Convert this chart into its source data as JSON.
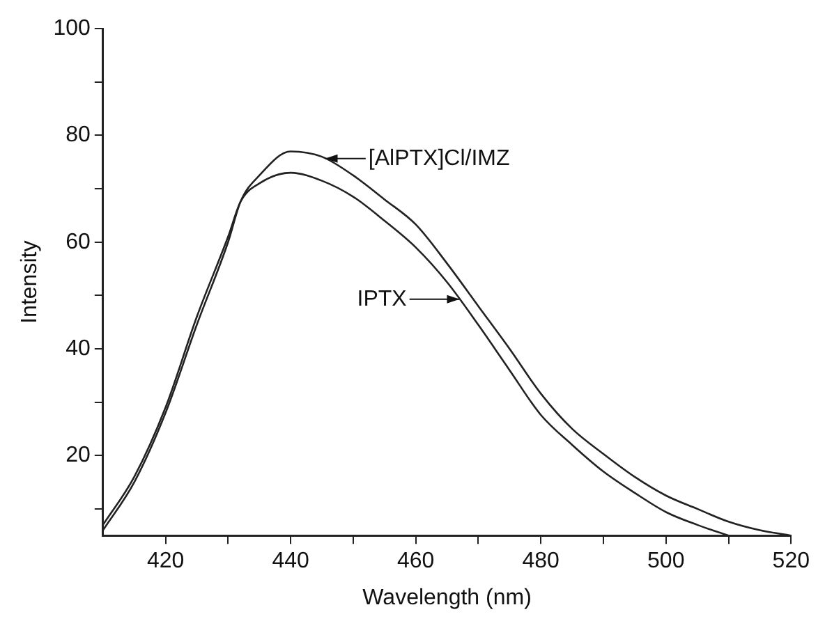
{
  "chart_data": {
    "type": "line",
    "xlabel": "Wavelength (nm)",
    "ylabel": "Intensity",
    "xlim": [
      410,
      520
    ],
    "ylim": [
      5,
      100
    ],
    "xticks": [
      420,
      {
        "value": 430,
        "label": null
      },
      440,
      {
        "value": 450,
        "label": null
      },
      460,
      {
        "value": 470,
        "label": null
      },
      480,
      {
        "value": 490,
        "label": null
      },
      500,
      {
        "value": 510,
        "label": null
      },
      520
    ],
    "yticks": [
      {
        "value": 10,
        "label": null
      },
      20,
      {
        "value": 30,
        "label": null
      },
      40,
      {
        "value": 50,
        "label": null
      },
      60,
      {
        "value": 70,
        "label": null
      },
      80,
      {
        "value": 90,
        "label": null
      },
      100
    ],
    "grid": false,
    "legend": false,
    "marker": "none",
    "line_style": "solid",
    "series": [
      {
        "name": "[AlPTX]Cl/IMZ",
        "color": "#222222",
        "x": [
          410,
          415,
          420,
          425,
          430,
          432,
          435,
          440,
          445,
          450,
          455,
          460,
          465,
          470,
          475,
          480,
          485,
          490,
          495,
          500,
          505,
          510,
          515,
          520
        ],
        "values": [
          6,
          15,
          28,
          44.5,
          60,
          67.6,
          72.5,
          77,
          76,
          72.5,
          68,
          63.3,
          56,
          48,
          40,
          31.6,
          25,
          20.3,
          16,
          12.5,
          10,
          7.6,
          6,
          5
        ]
      },
      {
        "name": "IPTX",
        "color": "#222222",
        "x": [
          410,
          415,
          420,
          425,
          430,
          432,
          435,
          440,
          445,
          450,
          455,
          460,
          465,
          470,
          475,
          480,
          485,
          490,
          495,
          500,
          505,
          510
        ],
        "values": [
          7,
          16,
          29,
          46,
          61,
          67.6,
          71,
          73,
          71.5,
          68.5,
          64,
          59,
          52.5,
          44.5,
          36,
          27.6,
          22,
          17,
          13,
          9.4,
          7,
          5
        ]
      }
    ]
  }
}
